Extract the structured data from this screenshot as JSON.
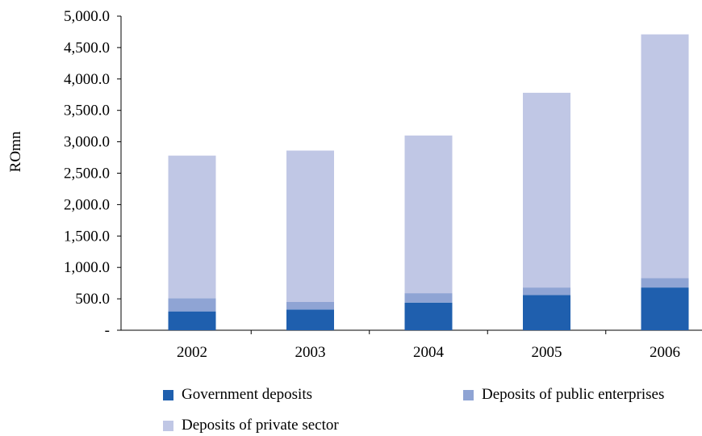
{
  "chart_data": {
    "type": "bar",
    "stacked": true,
    "title": "",
    "xlabel": "",
    "ylabel": "ROmn",
    "ylim": [
      0,
      5000
    ],
    "ytick_values": [
      0,
      500,
      1000,
      1500,
      2000,
      2500,
      3000,
      3500,
      4000,
      4500,
      5000
    ],
    "ytick_labels": [
      "-",
      "500.0",
      "1,000.0",
      "1,500.0",
      "2,000.0",
      "2,500.0",
      "3,000.0",
      "3,500.0",
      "4,000.0",
      "4,500.0",
      "5,000.0"
    ],
    "categories": [
      "2002",
      "2003",
      "2004",
      "2005",
      "2006"
    ],
    "series": [
      {
        "name": "Government deposits",
        "color": "#1f5fae",
        "values": [
          300,
          330,
          440,
          560,
          680
        ]
      },
      {
        "name": "Deposits of public enterprises",
        "color": "#8fa4d4",
        "values": [
          210,
          120,
          150,
          120,
          150
        ]
      },
      {
        "name": "Deposits of private sector",
        "color": "#c0c7e5",
        "values": [
          2270,
          2410,
          2510,
          3100,
          3880
        ]
      }
    ],
    "legend_position": "bottom",
    "grid": false
  }
}
